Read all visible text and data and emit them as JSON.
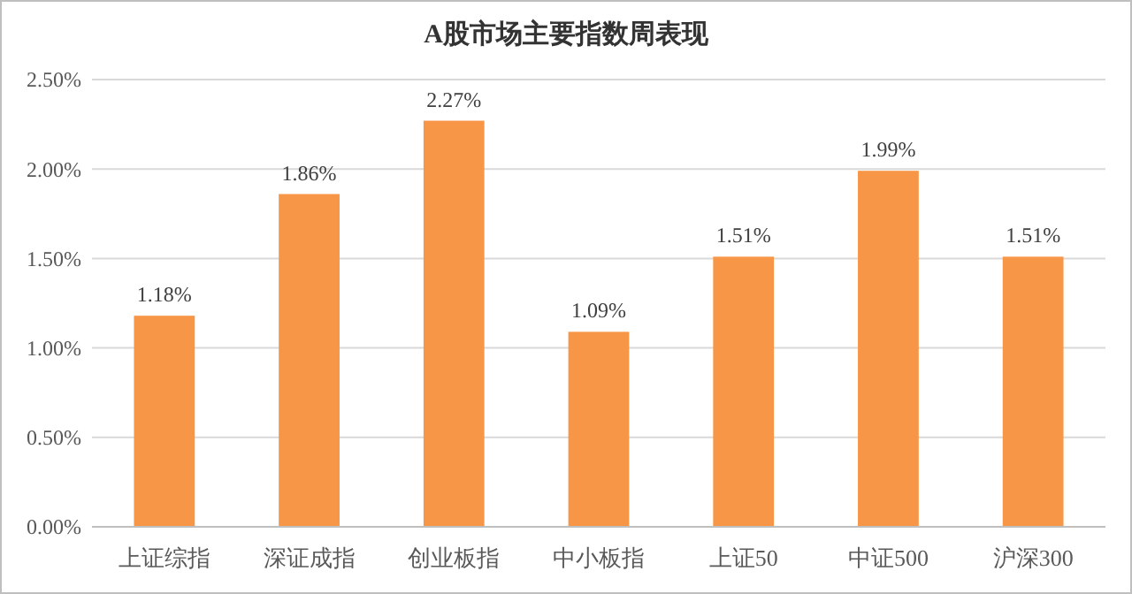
{
  "chart_data": {
    "type": "bar",
    "title": "A股市场主要指数周表现",
    "categories": [
      "上证综指",
      "深证成指",
      "创业板指",
      "中小板指",
      "上证50",
      "中证500",
      "沪深300"
    ],
    "values": [
      1.18,
      1.86,
      2.27,
      1.09,
      1.51,
      1.99,
      1.51
    ],
    "value_labels": [
      "1.18%",
      "1.86%",
      "2.27%",
      "1.09%",
      "1.51%",
      "1.99%",
      "1.51%"
    ],
    "color": "#f79646",
    "ylim": [
      0,
      2.5
    ],
    "yticks": [
      {
        "value": 0,
        "label": "0.00%"
      },
      {
        "value": 0.5,
        "label": "0.50%"
      },
      {
        "value": 1,
        "label": "1.00%"
      },
      {
        "value": 1.5,
        "label": "1.50%"
      },
      {
        "value": 2,
        "label": "2.00%"
      },
      {
        "value": 2.5,
        "label": "2.50%"
      }
    ],
    "grid": "y"
  }
}
